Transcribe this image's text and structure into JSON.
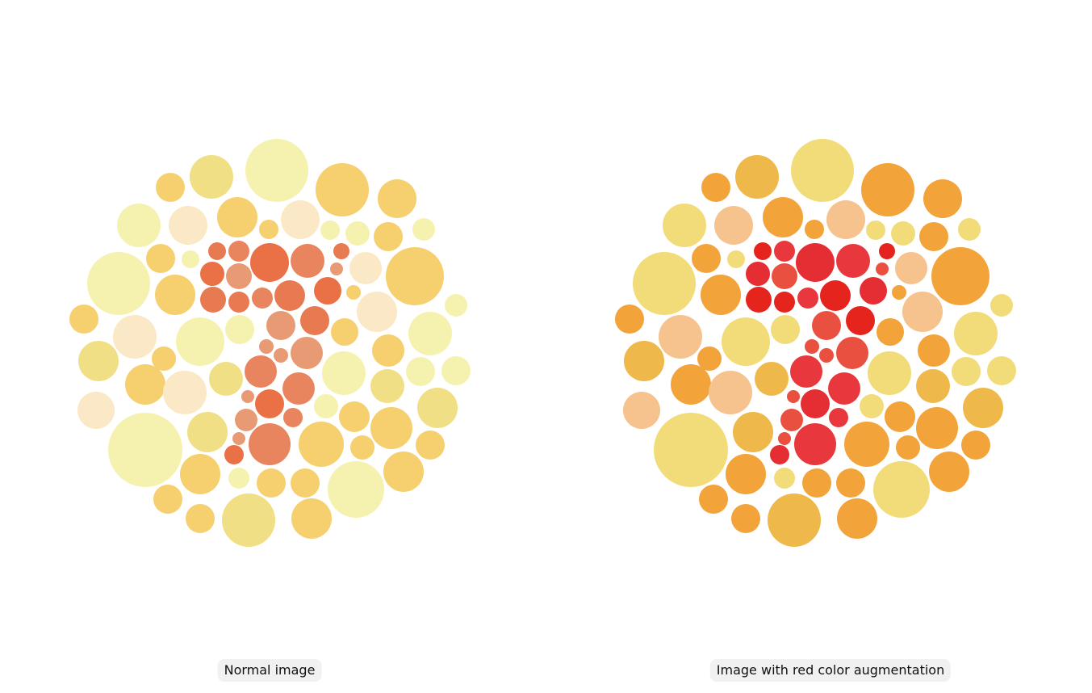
{
  "captions": {
    "left": "Normal image",
    "right": "Image with red color augmentation"
  },
  "palettes": {
    "normal": {
      "figure": [
        "#e87a52",
        "#e8855f",
        "#e89a74",
        "#ea7045"
      ],
      "background": [
        "#f5f2b0",
        "#f0df85",
        "#f6cf6e",
        "#fbe8c6"
      ]
    },
    "augmented": {
      "figure": [
        "#e5241d",
        "#e8383d",
        "#ea5040",
        "#e42e34"
      ],
      "background": [
        "#f2dc7a",
        "#eeb94a",
        "#f2a33a",
        "#f6c28e"
      ]
    }
  }
}
